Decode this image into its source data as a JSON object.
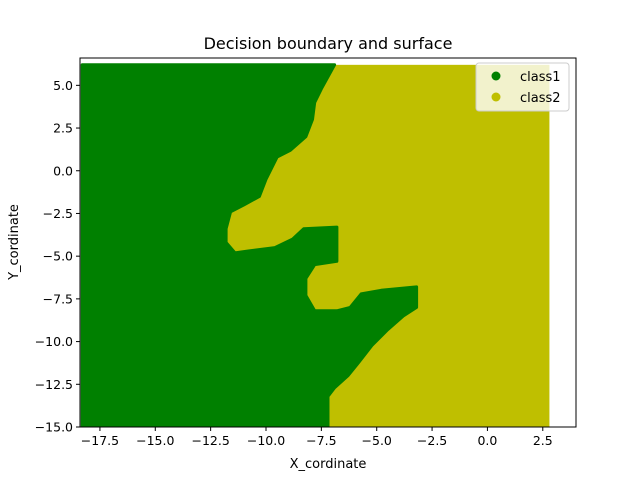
{
  "chart_data": {
    "type": "scatter",
    "title": "Decision boundary and surface",
    "xlabel": "X_cordinate",
    "ylabel": "Y_cordinate",
    "xlim": [
      -18.4,
      4.0
    ],
    "ylim": [
      -15.0,
      6.6
    ],
    "xticks": [
      -17.5,
      -15.0,
      -12.5,
      -10.0,
      -7.5,
      -5.0,
      -2.5,
      0.0,
      2.5
    ],
    "xtick_labels": [
      "−17.5",
      "−15.0",
      "−12.5",
      "−10.0",
      "−7.5",
      "−5.0",
      "−2.5",
      "0.0",
      "2.5"
    ],
    "yticks": [
      5.0,
      2.5,
      0.0,
      -2.5,
      -5.0,
      -7.5,
      -10.0,
      -12.5,
      -15.0
    ],
    "ytick_labels": [
      "5.0",
      "2.5",
      "0.0",
      "−2.5",
      "−5.0",
      "−7.5",
      "−10.0",
      "−12.5",
      "−15.0"
    ],
    "grid": false,
    "legend_position": "top-right",
    "series": [
      {
        "name": "class1",
        "color": "#008000",
        "marker": "circle"
      },
      {
        "name": "class2",
        "color": "#bfbf00",
        "marker": "circle"
      }
    ],
    "surface_extent": {
      "x": [
        -18.3,
        2.8
      ],
      "y": [
        -15.0,
        6.2
      ]
    },
    "boundary_points": [
      [
        -6.9,
        6.2
      ],
      [
        -7.2,
        5.5
      ],
      [
        -7.5,
        4.8
      ],
      [
        -7.8,
        4.0
      ],
      [
        -7.9,
        3.0
      ],
      [
        -8.2,
        2.0
      ],
      [
        -8.9,
        1.2
      ],
      [
        -9.5,
        0.8
      ],
      [
        -10.0,
        -0.5
      ],
      [
        -10.3,
        -1.5
      ],
      [
        -11.0,
        -2.0
      ],
      [
        -11.6,
        -2.4
      ],
      [
        -11.8,
        -3.4
      ],
      [
        -11.8,
        -4.2
      ],
      [
        -11.4,
        -4.8
      ],
      [
        -10.8,
        -4.7
      ],
      [
        -9.6,
        -4.5
      ],
      [
        -8.8,
        -4.0
      ],
      [
        -8.3,
        -3.4
      ],
      [
        -6.8,
        -3.3
      ],
      [
        -6.8,
        -5.3
      ],
      [
        -7.8,
        -5.5
      ],
      [
        -8.2,
        -6.3
      ],
      [
        -8.2,
        -7.3
      ],
      [
        -7.8,
        -8.2
      ],
      [
        -6.8,
        -8.2
      ],
      [
        -6.2,
        -8.0
      ],
      [
        -5.7,
        -7.2
      ],
      [
        -4.8,
        -7.0
      ],
      [
        -3.2,
        -6.8
      ],
      [
        -3.2,
        -8.0
      ],
      [
        -3.8,
        -8.5
      ],
      [
        -4.5,
        -9.3
      ],
      [
        -5.2,
        -10.2
      ],
      [
        -5.8,
        -11.2
      ],
      [
        -6.3,
        -12.0
      ],
      [
        -6.9,
        -12.7
      ],
      [
        -7.2,
        -13.2
      ],
      [
        -7.2,
        -15.0
      ]
    ]
  }
}
